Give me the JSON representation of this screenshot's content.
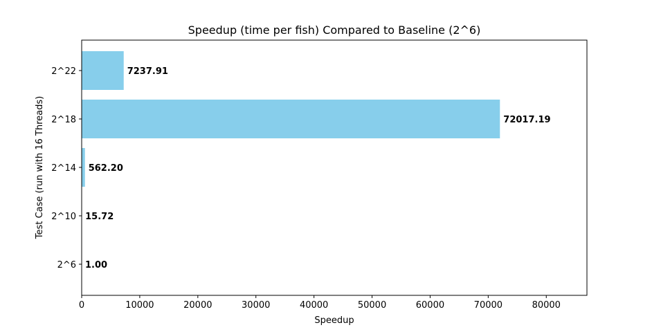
{
  "chart_data": {
    "type": "bar",
    "orientation": "horizontal",
    "title": "Speedup (time per fish) Compared to Baseline (2^6)",
    "xlabel": "Speedup",
    "ylabel": "Test Case (run with 16 Threads)",
    "categories": [
      "2^6",
      "2^10",
      "2^14",
      "2^18",
      "2^22"
    ],
    "values": [
      1.0,
      15.72,
      562.2,
      72017.19,
      7237.91
    ],
    "data_labels": [
      "1.00",
      "15.72",
      "562.20",
      "72017.19",
      "7237.91"
    ],
    "xlim": [
      0,
      87000
    ],
    "xticks": [
      0,
      10000,
      20000,
      30000,
      40000,
      50000,
      60000,
      70000,
      80000
    ],
    "xtick_labels": [
      "0",
      "10000",
      "20000",
      "30000",
      "40000",
      "50000",
      "60000",
      "70000",
      "80000"
    ],
    "bar_color": "#87ceeb",
    "grid": false,
    "legend": "none"
  }
}
